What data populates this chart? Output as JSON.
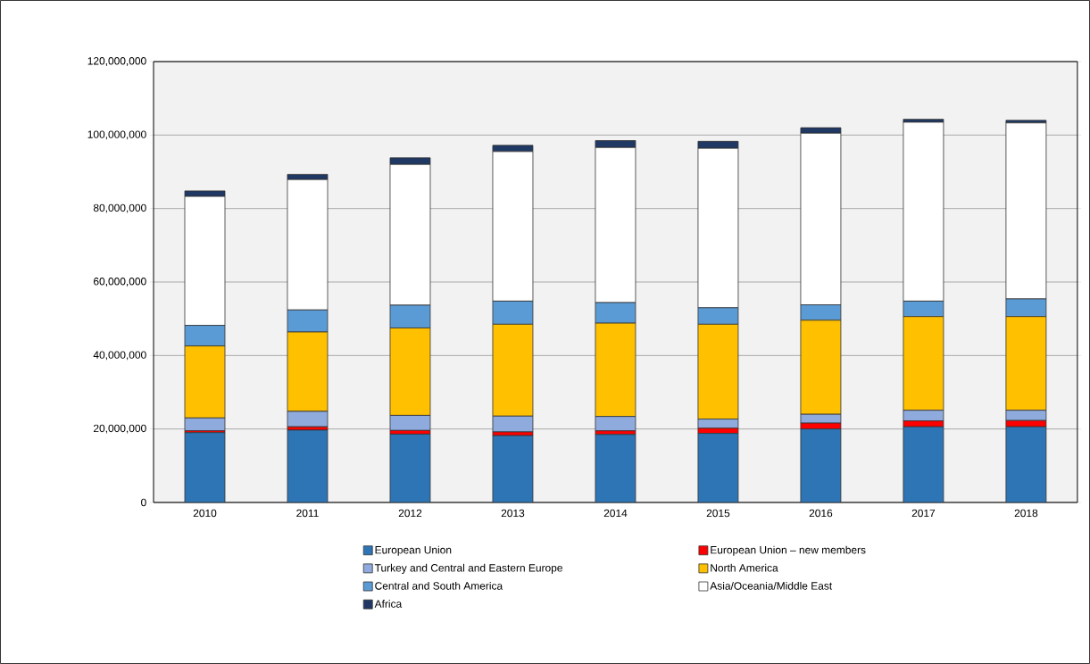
{
  "chart_data": {
    "type": "bar",
    "stacked": true,
    "categories": [
      "2010",
      "2011",
      "2012",
      "2013",
      "2014",
      "2015",
      "2016",
      "2017",
      "2018"
    ],
    "series": [
      {
        "name": "European Union",
        "color": "#2e75b6",
        "values": [
          19000000,
          19700000,
          18600000,
          18200000,
          18500000,
          18800000,
          20000000,
          20600000,
          20600000
        ]
      },
      {
        "name": "European Union – new members",
        "color": "#ff0000",
        "values": [
          500000,
          900000,
          1000000,
          1000000,
          1000000,
          1400000,
          1600000,
          1600000,
          1700000
        ]
      },
      {
        "name": "Turkey and Central and Eastern Europe",
        "color": "#8faadc",
        "values": [
          3500000,
          4200000,
          4100000,
          4300000,
          3900000,
          2500000,
          2400000,
          2900000,
          2800000
        ]
      },
      {
        "name": "North America",
        "color": "#ffc000",
        "values": [
          19600000,
          21600000,
          23800000,
          25000000,
          25400000,
          25800000,
          25600000,
          25500000,
          25500000
        ]
      },
      {
        "name": "Central and South America",
        "color": "#5b9bd5",
        "values": [
          5600000,
          6000000,
          6200000,
          6300000,
          5600000,
          4500000,
          4200000,
          4200000,
          4800000
        ]
      },
      {
        "name": "Asia/Oceania/Middle East",
        "color": "#ffffff",
        "values": [
          35100000,
          35500000,
          38300000,
          40700000,
          42200000,
          43400000,
          46700000,
          48700000,
          47900000
        ]
      },
      {
        "name": "Africa",
        "color": "#1f3864",
        "values": [
          1500000,
          1400000,
          1800000,
          1700000,
          1900000,
          1900000,
          1500000,
          800000,
          700000
        ]
      }
    ],
    "ylim": [
      0,
      120000000
    ],
    "yticks": [
      0,
      {
        "value": 20000000,
        "label": "20,000,000"
      },
      {
        "value": 40000000,
        "label": "40,000,000"
      },
      {
        "value": 60000000,
        "label": "60,000,000"
      },
      {
        "value": 80000000,
        "label": "80,000,000"
      },
      {
        "value": 100000000,
        "label": "100,000,000"
      },
      {
        "value": 120000000,
        "label": "120,000,000"
      }
    ],
    "grid": "y",
    "legend": "bottom"
  }
}
